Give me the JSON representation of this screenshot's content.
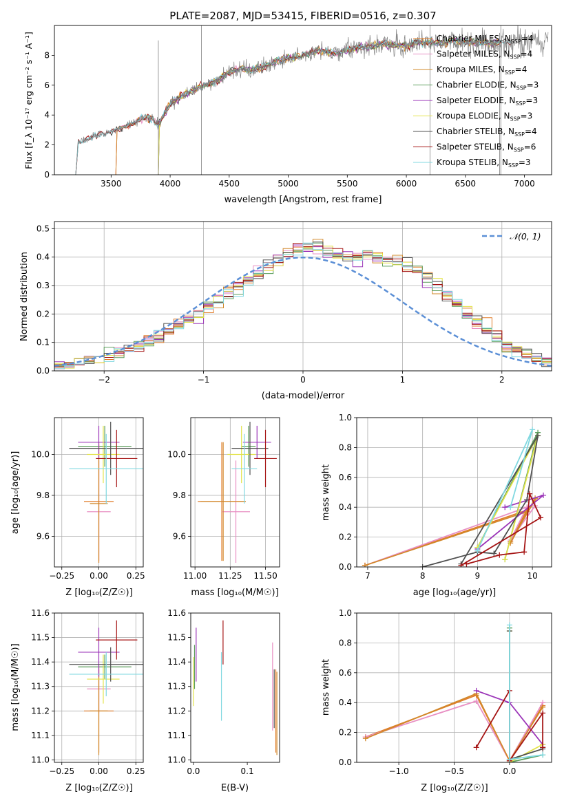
{
  "colors": [
    "#e07b28",
    "#e88fc3",
    "#d2882a",
    "#5c9e5c",
    "#9b35b8",
    "#e3e34a",
    "#505050",
    "#a51414",
    "#80d8e0"
  ],
  "chart_data": [
    {
      "id": "spectrum",
      "type": "line",
      "title": "PLATE=2087, MJD=53415, FIBERID=0516, z=0.307",
      "xlabel": "wavelength [Angstrom, rest frame]",
      "ylabel": "Flux [f_λ 10⁻¹⁷ erg cm⁻² s⁻¹ A⁻¹]",
      "xlim": [
        3020,
        7230
      ],
      "ylim": [
        0,
        10
      ],
      "xticks": [
        "3500",
        "4000",
        "4500",
        "5000",
        "5500",
        "6000",
        "6500",
        "7000"
      ],
      "yticks": [
        "0",
        "2",
        "4",
        "6",
        "8"
      ],
      "grid": false,
      "legend_position": "right",
      "series": [
        {
          "name": "Chabrier MILES, N_SSP=4",
          "start": 3540,
          "end": 6800
        },
        {
          "name": "Salpeter MILES, N_SSP=4",
          "start": 3540,
          "end": 6800
        },
        {
          "name": "Kroupa MILES, N_SSP=4",
          "start": 3540,
          "end": 6800
        },
        {
          "name": "Chabrier ELODIE, N_SSP=3",
          "start": 3900,
          "end": 6800
        },
        {
          "name": "Salpeter ELODIE, N_SSP=3",
          "start": 3900,
          "end": 6800
        },
        {
          "name": "Kroupa ELODIE, N_SSP=3",
          "start": 3900,
          "end": 6800
        },
        {
          "name": "Chabrier STELIB, N_SSP=4",
          "start": 3200,
          "end": 6900
        },
        {
          "name": "Salpeter STELIB, N_SSP=6",
          "start": 3200,
          "end": 6900
        },
        {
          "name": "Kroupa STELIB, N_SSP=3",
          "start": 3200,
          "end": 6900
        }
      ],
      "continuum": {
        "x": [
          3200,
          3220,
          3300,
          3400,
          3500,
          3550,
          3650,
          3720,
          3800,
          3850,
          3900,
          3950,
          4000,
          4100,
          4200,
          4300,
          4400,
          4500,
          4600,
          4700,
          4800,
          4900,
          5000,
          5100,
          5200,
          5300,
          5400,
          5500,
          5600,
          5700,
          5800,
          5900,
          6000,
          6100,
          6200,
          6300,
          6400,
          6500,
          6600,
          6700,
          6800,
          6900
        ],
        "y": [
          0.0,
          2.1,
          2.4,
          2.7,
          2.9,
          3.0,
          3.3,
          3.6,
          3.9,
          3.7,
          3.3,
          4.1,
          4.7,
          5.3,
          5.7,
          6.0,
          6.3,
          6.9,
          7.1,
          7.0,
          7.3,
          7.6,
          7.8,
          7.9,
          8.2,
          8.3,
          8.1,
          8.4,
          8.5,
          8.6,
          8.8,
          8.7,
          8.6,
          8.9,
          8.9,
          8.8,
          9.0,
          8.9,
          8.9,
          8.8,
          8.9,
          8.9
        ]
      }
    },
    {
      "id": "residuals",
      "type": "line",
      "xlabel": "(data-model)/error",
      "ylabel": "Normed distribution",
      "xlim": [
        -2.5,
        2.5
      ],
      "ylim": [
        0,
        0.525
      ],
      "xticks": [
        "−2",
        "−1",
        "0",
        "1",
        "2"
      ],
      "yticks": [
        "0.0",
        "0.1",
        "0.2",
        "0.3",
        "0.4",
        "0.5"
      ],
      "grid": true,
      "legend_position": "top-right",
      "legend": "𝒩(0, 1)",
      "bin_edges_start": -2.5,
      "bin_width": 0.1,
      "base_heights": [
        0.03,
        0.033,
        0.037,
        0.041,
        0.046,
        0.055,
        0.065,
        0.077,
        0.09,
        0.105,
        0.12,
        0.14,
        0.16,
        0.18,
        0.2,
        0.225,
        0.25,
        0.275,
        0.295,
        0.32,
        0.345,
        0.37,
        0.39,
        0.41,
        0.425,
        0.44,
        0.43,
        0.415,
        0.41,
        0.4,
        0.395,
        0.405,
        0.4,
        0.39,
        0.385,
        0.37,
        0.345,
        0.32,
        0.295,
        0.265,
        0.235,
        0.205,
        0.175,
        0.15,
        0.12,
        0.095,
        0.075,
        0.06,
        0.045,
        0.035
      ]
    },
    {
      "id": "age-vs-Z",
      "type": "scatter",
      "xlabel": "Z [log₁₀(Z/Z☉)]",
      "ylabel": "age  [log₁₀(age/yr)]",
      "xlim": [
        -0.3,
        0.3
      ],
      "ylim": [
        9.45,
        10.18
      ],
      "xticks": [
        "−0.25",
        "0.00",
        "0.25"
      ],
      "yticks": [
        "9.6",
        "9.8",
        "10.0"
      ],
      "grid": true,
      "x": [
        0.0,
        0.0,
        0.0,
        0.04,
        0.0,
        0.03,
        0.08,
        0.12,
        0.05
      ],
      "xerr": [
        0.1,
        0.08,
        0.06,
        0.18,
        0.14,
        0.11,
        0.28,
        0.14,
        0.25
      ],
      "y": [
        9.77,
        9.72,
        9.76,
        10.04,
        10.06,
        10.0,
        10.03,
        9.98,
        9.93
      ],
      "yerr": [
        0.29,
        0.25,
        0.29,
        0.1,
        0.08,
        0.14,
        0.13,
        0.14,
        0.17
      ]
    },
    {
      "id": "age-vs-mass",
      "type": "scatter",
      "xlabel": "mass [log₁₀(M/M☉)]",
      "ylabel": "",
      "xlim": [
        10.97,
        11.6
      ],
      "ylim": [
        9.45,
        10.18
      ],
      "xticks": [
        "11.00",
        "11.25",
        "11.50"
      ],
      "yticks": [
        "9.6",
        "9.8",
        "10.0"
      ],
      "grid": true,
      "x": [
        11.19,
        11.29,
        11.2,
        11.38,
        11.44,
        11.33,
        11.39,
        11.5,
        11.35
      ],
      "xerr": [
        0.17,
        0.1,
        0.16,
        0.05,
        0.1,
        0.1,
        0.13,
        0.08,
        0.09
      ],
      "y": [
        9.77,
        9.72,
        9.77,
        10.04,
        10.06,
        10.0,
        10.03,
        9.98,
        9.93
      ],
      "yerr": [
        0.29,
        0.25,
        0.29,
        0.1,
        0.08,
        0.14,
        0.13,
        0.14,
        0.17
      ]
    },
    {
      "id": "massweight-vs-age",
      "type": "line",
      "xlabel": "age  [log₁₀(age/yr)]",
      "ylabel": "mass weight",
      "xlim": [
        6.8,
        10.35
      ],
      "ylim": [
        0,
        1
      ],
      "xticks": [
        "7",
        "8",
        "9",
        "10"
      ],
      "yticks": [
        "0.0",
        "0.2",
        "0.4",
        "0.6",
        "0.8",
        "1.0"
      ],
      "grid": true,
      "series": [
        {
          "x": [
            6.95,
            9.9,
            9.6,
            10.05
          ],
          "y": [
            0.01,
            0.38,
            0.17,
            0.45
          ]
        },
        {
          "x": [
            6.95,
            9.9,
            9.6,
            10.05
          ],
          "y": [
            0.01,
            0.4,
            0.18,
            0.41
          ]
        },
        {
          "x": [
            6.95,
            9.9,
            9.6,
            10.05
          ],
          "y": [
            0.01,
            0.37,
            0.16,
            0.46
          ]
        },
        {
          "x": [
            9.0,
            10.1,
            9.5
          ],
          "y": [
            0.13,
            0.9,
            0.05
          ]
        },
        {
          "x": [
            9.0,
            10.2,
            9.5
          ],
          "y": [
            0.12,
            0.48,
            0.4
          ]
        },
        {
          "x": [
            9.0,
            10.1,
            9.5
          ],
          "y": [
            0.13,
            0.88,
            0.05
          ]
        },
        {
          "x": [
            8.0,
            9.0,
            9.3,
            9.9,
            10.1,
            8.7
          ],
          "y": [
            0.0,
            0.1,
            0.09,
            0.45,
            0.88,
            0.02
          ]
        },
        {
          "x": [
            8.8,
            9.4,
            9.85,
            9.95,
            10.15,
            8.7
          ],
          "y": [
            0.02,
            0.08,
            0.1,
            0.49,
            0.33,
            0.01
          ]
        },
        {
          "x": [
            9.0,
            10.0,
            9.6
          ],
          "y": [
            0.11,
            0.92,
            0.4
          ]
        }
      ]
    },
    {
      "id": "mass-vs-Z",
      "type": "scatter",
      "xlabel": "Z [log₁₀(Z/Z☉)]",
      "ylabel": "mass [log₁₀(M/M☉)]",
      "xlim": [
        -0.3,
        0.3
      ],
      "ylim": [
        10.99,
        11.6
      ],
      "xticks": [
        "−0.25",
        "0.00",
        "0.25"
      ],
      "yticks": [
        "11.0",
        "11.1",
        "11.2",
        "11.3",
        "11.4",
        "11.5",
        "11.6"
      ],
      "grid": true,
      "x": [
        0.0,
        0.0,
        0.0,
        0.04,
        0.0,
        0.03,
        0.08,
        0.12,
        0.05
      ],
      "xerr": [
        0.1,
        0.08,
        0.06,
        0.18,
        0.14,
        0.11,
        0.28,
        0.14,
        0.25
      ],
      "y": [
        11.2,
        11.29,
        11.2,
        11.38,
        11.44,
        11.33,
        11.39,
        11.49,
        11.35
      ],
      "yerr": [
        0.17,
        0.1,
        0.18,
        0.05,
        0.1,
        0.1,
        0.07,
        0.08,
        0.09
      ]
    },
    {
      "id": "mass-vs-EBV",
      "type": "scatter",
      "xlabel": "E(B-V)",
      "ylabel": "",
      "xlim": [
        -0.005,
        0.16
      ],
      "ylim": [
        10.99,
        11.6
      ],
      "xticks": [
        "0.0",
        "0.1"
      ],
      "yticks": [
        "11.0",
        "11.1",
        "11.2",
        "11.3",
        "11.4",
        "11.5",
        "11.6"
      ],
      "grid": false,
      "x": [
        0.153,
        0.147,
        0.155,
        0.002,
        0.005,
        0.0,
        0.15,
        0.055,
        0.052
      ],
      "y": [
        11.2,
        11.3,
        11.19,
        11.38,
        11.43,
        11.32,
        11.25,
        11.48,
        11.3
      ],
      "yerr": [
        0.17,
        0.18,
        0.17,
        0.09,
        0.11,
        0.1,
        0.12,
        0.09,
        0.14
      ]
    },
    {
      "id": "massweight-vs-Z",
      "type": "line",
      "xlabel": "Z [log₁₀(Z/Z☉)]",
      "ylabel": "mass weight",
      "xlim": [
        -1.38,
        0.38
      ],
      "ylim": [
        0,
        1
      ],
      "xticks": [
        "−1.0",
        "−0.5",
        "0.0"
      ],
      "yticks": [
        "0.0",
        "0.2",
        "0.4",
        "0.6",
        "0.8",
        "1.0"
      ],
      "grid": true,
      "series": [
        {
          "x": [
            -1.3,
            -0.3,
            0.0,
            0.3
          ],
          "y": [
            0.17,
            0.45,
            0.01,
            0.38
          ]
        },
        {
          "x": [
            -1.3,
            -0.3,
            0.0,
            0.3
          ],
          "y": [
            0.17,
            0.41,
            0.01,
            0.4
          ]
        },
        {
          "x": [
            -1.3,
            -0.3,
            0.0,
            0.3
          ],
          "y": [
            0.16,
            0.46,
            0.01,
            0.37
          ]
        },
        {
          "x": [
            0.0,
            0.0,
            0.3
          ],
          "y": [
            0.9,
            0.0,
            0.05
          ]
        },
        {
          "x": [
            -0.3,
            0.0,
            0.3
          ],
          "y": [
            0.48,
            0.4,
            0.12
          ]
        },
        {
          "x": [
            0.0,
            0.0,
            0.3
          ],
          "y": [
            0.88,
            0.0,
            0.12
          ]
        },
        {
          "x": [
            0.0,
            0.0,
            0.3,
            0.3
          ],
          "y": [
            0.88,
            0.02,
            0.09,
            0.1
          ]
        },
        {
          "x": [
            -0.3,
            0.0,
            0.0,
            0.3,
            0.3
          ],
          "y": [
            0.1,
            0.48,
            0.01,
            0.33,
            0.1
          ]
        },
        {
          "x": [
            0.0,
            0.0,
            0.3
          ],
          "y": [
            0.92,
            0.02,
            0.05
          ]
        }
      ]
    }
  ]
}
